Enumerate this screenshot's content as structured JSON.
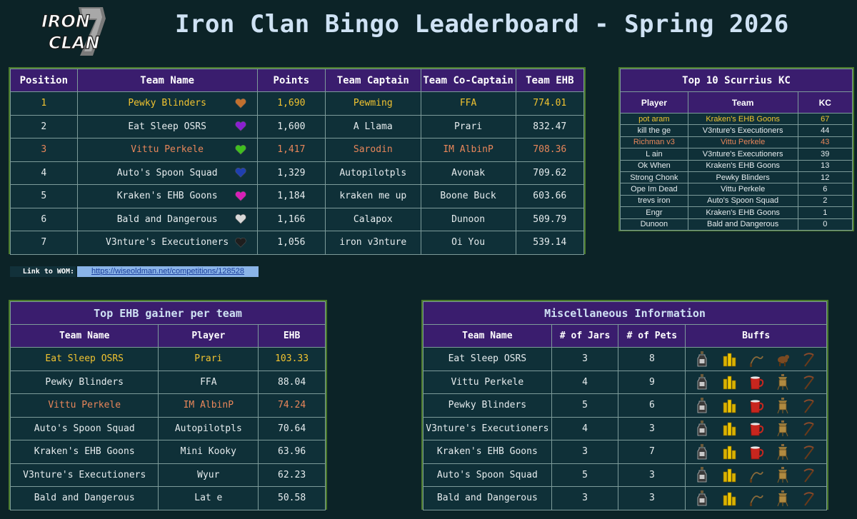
{
  "header": {
    "logo_line1": "IRON",
    "logo_line2": "CLAN",
    "title": "Iron Clan Bingo Leaderboard - Spring 2026"
  },
  "leaderboard": {
    "columns": [
      "Position",
      "Team Name",
      "Points",
      "Team Captain",
      "Team Co-Captain",
      "Team EHB"
    ],
    "rows": [
      {
        "position": "1",
        "team": "Pewky Blinders",
        "heart": "#c2702e",
        "points": "1,690",
        "captain": "Pewming",
        "cocaptain": "FFA",
        "ehb": "774.01",
        "style": "gold"
      },
      {
        "position": "2",
        "team": "Eat Sleep OSRS",
        "heart": "#8a1fd1",
        "points": "1,600",
        "captain": "A Llama",
        "cocaptain": "Prari",
        "ehb": "832.47",
        "style": ""
      },
      {
        "position": "3",
        "team": "Vittu Perkele",
        "heart": "#3fbf1f",
        "points": "1,417",
        "captain": "Sarodin",
        "cocaptain": "IM AlbinP",
        "ehb": "708.36",
        "style": "bronze"
      },
      {
        "position": "4",
        "team": "Auto's Spoon Squad",
        "heart": "#1f3fb0",
        "points": "1,329",
        "captain": "Autopilotpls",
        "cocaptain": "Avonak",
        "ehb": "709.62",
        "style": ""
      },
      {
        "position": "5",
        "team": "Kraken's EHB Goons",
        "heart": "#d81fb8",
        "points": "1,184",
        "captain": "kraken me up",
        "cocaptain": "Boone Buck",
        "ehb": "603.66",
        "style": ""
      },
      {
        "position": "6",
        "team": "Bald and Dangerous",
        "heart": "#d8d8d8",
        "points": "1,166",
        "captain": "Calapox",
        "cocaptain": "Dunoon",
        "ehb": "509.79",
        "style": ""
      },
      {
        "position": "7",
        "team": "V3nture's Executioners",
        "heart": "#1e1e1e",
        "points": "1,056",
        "captain": "iron v3nture",
        "cocaptain": "Oi You",
        "ehb": "539.14",
        "style": ""
      }
    ]
  },
  "scurrius": {
    "title": "Top 10 Scurrius KC",
    "columns": [
      "Player",
      "Team",
      "KC"
    ],
    "rows": [
      {
        "player": "pot aram",
        "team": "Kraken's EHB Goons",
        "kc": "67",
        "style": "gold"
      },
      {
        "player": "kill the ge",
        "team": "V3nture's Executioners",
        "kc": "44",
        "style": ""
      },
      {
        "player": "Richman v3",
        "team": "Vittu Perkele",
        "kc": "43",
        "style": "bronze"
      },
      {
        "player": "L ain",
        "team": "V3nture's Executioners",
        "kc": "39",
        "style": ""
      },
      {
        "player": "Ok When",
        "team": "Kraken's EHB Goons",
        "kc": "13",
        "style": ""
      },
      {
        "player": "Strong Chonk",
        "team": "Pewky Blinders",
        "kc": "12",
        "style": ""
      },
      {
        "player": "Ope Im Dead",
        "team": "Vittu Perkele",
        "kc": "6",
        "style": ""
      },
      {
        "player": "trevs iron",
        "team": "Auto's Spoon Squad",
        "kc": "2",
        "style": ""
      },
      {
        "player": "Engr",
        "team": "Kraken's EHB Goons",
        "kc": "1",
        "style": ""
      },
      {
        "player": "Dunoon",
        "team": "Bald and Dangerous",
        "kc": "0",
        "style": ""
      }
    ]
  },
  "link": {
    "label": "Link to WOM:",
    "url": "https://wiseoldman.net/competitions/128528"
  },
  "gainer": {
    "title": "Top EHB gainer per team",
    "columns": [
      "Team Name",
      "Player",
      "EHB"
    ],
    "rows": [
      {
        "team": "Eat Sleep OSRS",
        "player": "Prari",
        "ehb": "103.33",
        "style": "gold"
      },
      {
        "team": "Pewky Blinders",
        "player": "FFA",
        "ehb": "88.04",
        "style": ""
      },
      {
        "team": "Vittu Perkele",
        "player": "IM AlbinP",
        "ehb": "74.24",
        "style": "bronze"
      },
      {
        "team": "Auto's Spoon Squad",
        "player": "Autopilotpls",
        "ehb": "70.64",
        "style": ""
      },
      {
        "team": "Kraken's EHB Goons",
        "player": "Mini Kooky",
        "ehb": "63.96",
        "style": ""
      },
      {
        "team": "V3nture's Executioners",
        "player": "Wyur",
        "ehb": "62.23",
        "style": ""
      },
      {
        "team": "Bald and Dangerous",
        "player": "Lat e",
        "ehb": "50.58",
        "style": ""
      }
    ]
  },
  "misc": {
    "title": "Miscellaneous Information",
    "columns": [
      "Team Name",
      "# of Jars",
      "# of Pets",
      "Buffs"
    ],
    "rows": [
      {
        "team": "Eat Sleep OSRS",
        "jars": "3",
        "pets": "8",
        "buffs": [
          "bottle-icon",
          "coins-icon",
          "whip-icon",
          "animal-icon",
          "scythe-icon"
        ]
      },
      {
        "team": "Vittu Perkele",
        "jars": "4",
        "pets": "9",
        "buffs": [
          "bottle-icon",
          "coins-icon",
          "mug-icon",
          "lantern-icon",
          "scythe-icon"
        ]
      },
      {
        "team": "Pewky Blinders",
        "jars": "5",
        "pets": "6",
        "buffs": [
          "bottle-icon",
          "coins-icon",
          "mug-icon",
          "lantern-icon",
          "scythe-icon"
        ]
      },
      {
        "team": "V3nture's Executioners",
        "jars": "4",
        "pets": "3",
        "buffs": [
          "bottle-icon",
          "coins-icon",
          "mug-icon",
          "lantern-icon",
          "scythe-icon"
        ]
      },
      {
        "team": "Kraken's EHB Goons",
        "jars": "3",
        "pets": "7",
        "buffs": [
          "bottle-icon",
          "coins-icon",
          "mug-icon",
          "lantern-icon",
          "scythe-icon"
        ]
      },
      {
        "team": "Auto's Spoon Squad",
        "jars": "5",
        "pets": "3",
        "buffs": [
          "bottle-icon",
          "coins-icon",
          "whip-icon",
          "lantern-icon",
          "scythe-icon"
        ]
      },
      {
        "team": "Bald and Dangerous",
        "jars": "3",
        "pets": "3",
        "buffs": [
          "bottle-icon",
          "coins-icon",
          "whip-icon",
          "lantern-icon",
          "scythe-icon"
        ]
      }
    ]
  }
}
